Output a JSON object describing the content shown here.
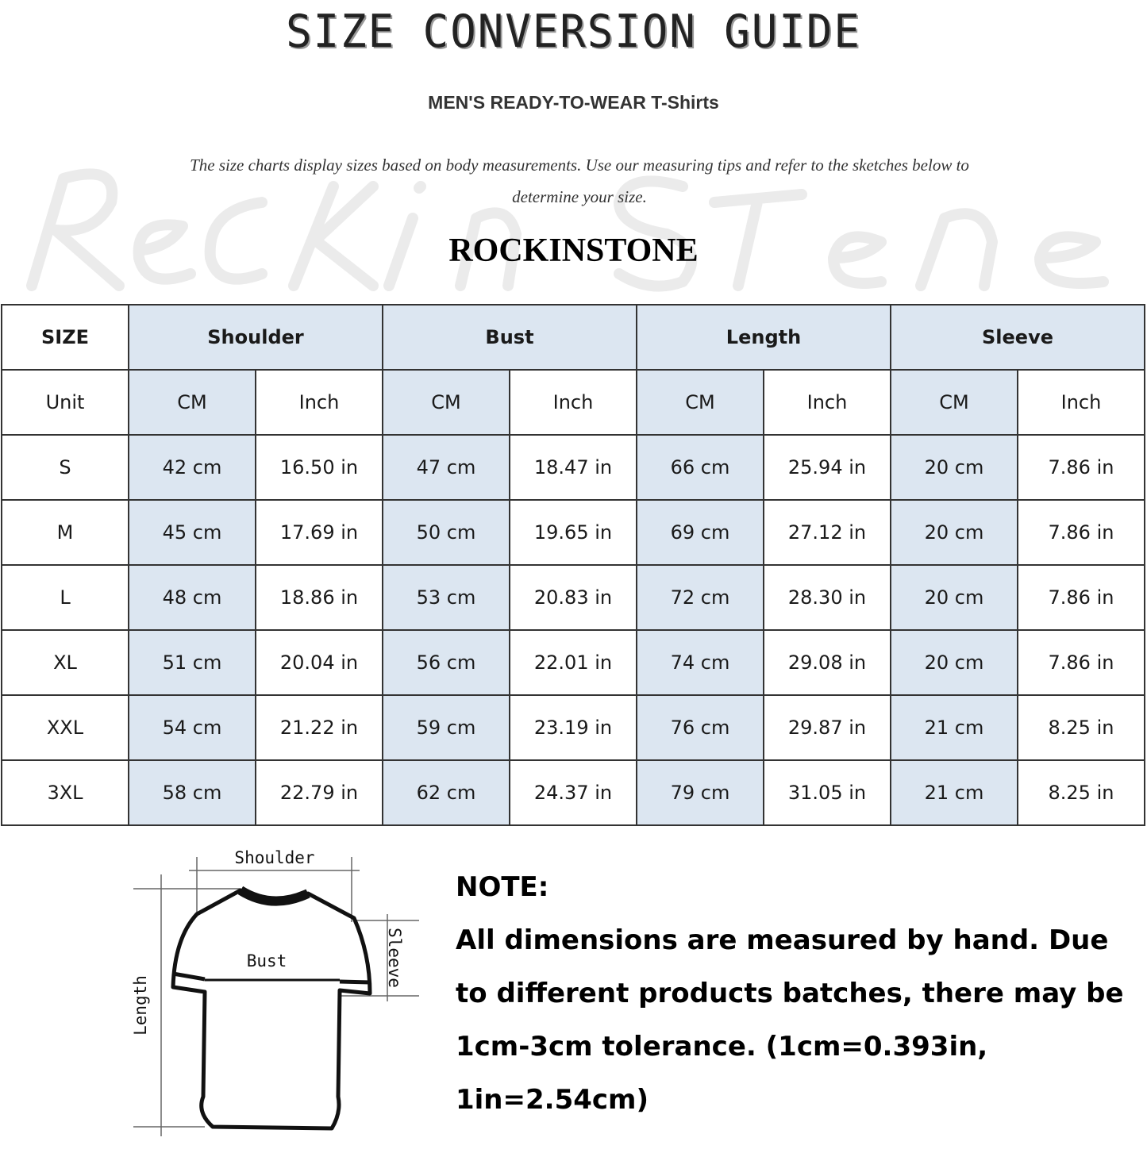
{
  "title": "SIZE CONVERSION GUIDE",
  "subtitle": "MEN'S READY-TO-WEAR T-Shirts",
  "description": "The size charts display sizes based on body measurements. Use our measuring tips and refer to the sketches below to determine your size.",
  "watermark": "Rock In Stone",
  "brand": "ROCKINSTONE",
  "colors": {
    "header_fill": "#dce6f1",
    "border": "#333333"
  },
  "table": {
    "size_header": "SIZE",
    "unit_label": "Unit",
    "groups": [
      "Shoulder",
      "Bust",
      "Length",
      "Sleeve"
    ],
    "units": [
      "CM",
      "Inch",
      "CM",
      "Inch",
      "CM",
      "Inch",
      "CM",
      "Inch"
    ],
    "rows": [
      {
        "size": "S",
        "values": [
          "42 cm",
          "16.50 in",
          "47 cm",
          "18.47  in",
          "66 cm",
          "25.94  in",
          "20 cm",
          "7.86  in"
        ]
      },
      {
        "size": "M",
        "values": [
          "45 cm",
          "17.69  in",
          "50 cm",
          "19.65  in",
          "69 cm",
          "27.12  in",
          "20 cm",
          "7.86  in"
        ]
      },
      {
        "size": "L",
        "values": [
          "48 cm",
          "18.86  in",
          "53 cm",
          "20.83  in",
          "72 cm",
          "28.30  in",
          "20 cm",
          "7.86  in"
        ]
      },
      {
        "size": "XL",
        "values": [
          "51 cm",
          "20.04  in",
          "56 cm",
          "22.01  in",
          "74 cm",
          "29.08  in",
          "20 cm",
          "7.86  in"
        ]
      },
      {
        "size": "XXL",
        "values": [
          "54 cm",
          "21.22  in",
          "59 cm",
          "23.19  in",
          "76 cm",
          "29.87  in",
          "21 cm",
          "8.25  in"
        ]
      },
      {
        "size": "3XL",
        "values": [
          "58 cm",
          "22.79  in",
          "62 cm",
          "24.37  in",
          "79 cm",
          "31.05  in",
          "21 cm",
          "8.25  in"
        ]
      }
    ]
  },
  "diagram": {
    "shoulder": "Shoulder",
    "bust": "Bust",
    "sleeve": "Sleeve",
    "length": "Length"
  },
  "note": {
    "heading": "NOTE:",
    "text": "All dimensions are measured by hand. Due to different products batches, there may be 1cm-3cm tolerance. (1cm=0.393in, 1in=2.54cm)"
  }
}
